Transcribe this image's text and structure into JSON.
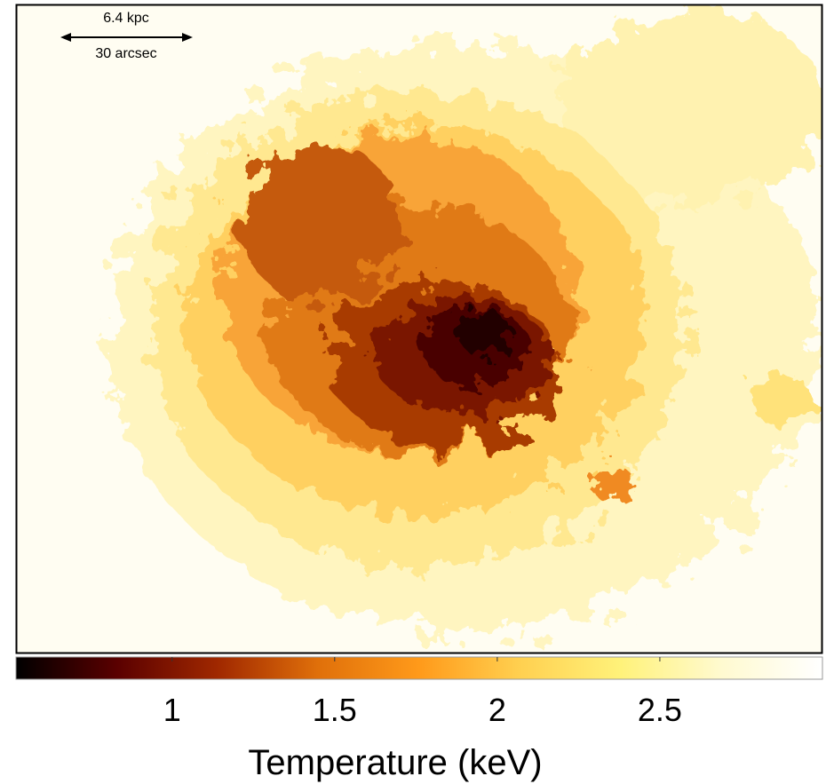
{
  "chart_data": {
    "type": "heatmap",
    "annotations": [
      "6.4 kpc",
      "30 arcsec"
    ],
    "colorbar": {
      "label": "Temperature (keV)",
      "lim": [
        0.52,
        3.0
      ],
      "ticks": [
        1,
        1.5,
        2,
        2.5
      ],
      "colors": [
        "#000000",
        "#5a0000",
        "#a02800",
        "#e0700a",
        "#ff9a1a",
        "#ffd050",
        "#fff27a",
        "#fffad0",
        "#ffffff"
      ]
    }
  }
}
